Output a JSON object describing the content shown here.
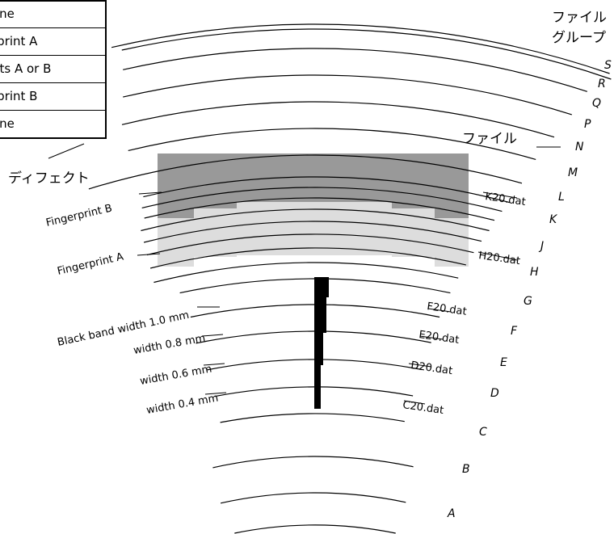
{
  "legend": {
    "rows": [
      "one",
      "rprint A",
      "nts A or B",
      "rprint B",
      "one"
    ]
  },
  "file_group_label_line1": "ファイル",
  "file_group_label_line2": "グループ",
  "file_label": "ファイル",
  "defect_label": "ディフェクト",
  "group_letters": [
    "S",
    "R",
    "Q",
    "P",
    "N",
    "M",
    "L",
    "K",
    "J",
    "H",
    "G",
    "F",
    "E",
    "D",
    "C",
    "B",
    "A"
  ],
  "fingerprint_b_label": "Fingerprint B",
  "fingerprint_a_label": "Fingerprint A",
  "files": [
    "K20.dat",
    "H20.dat",
    "F20.dat",
    "E20.dat",
    "D20.dat",
    "C20.dat"
  ],
  "bands": {
    "title": "Black band width 1.0 mm",
    "w08": "width 0.8 mm",
    "w06": "width 0.6 mm",
    "w04": "width 0.4 mm"
  },
  "colors": {
    "dark_region": "#999999",
    "light_region": "#dddddd",
    "ink": "#000000"
  }
}
